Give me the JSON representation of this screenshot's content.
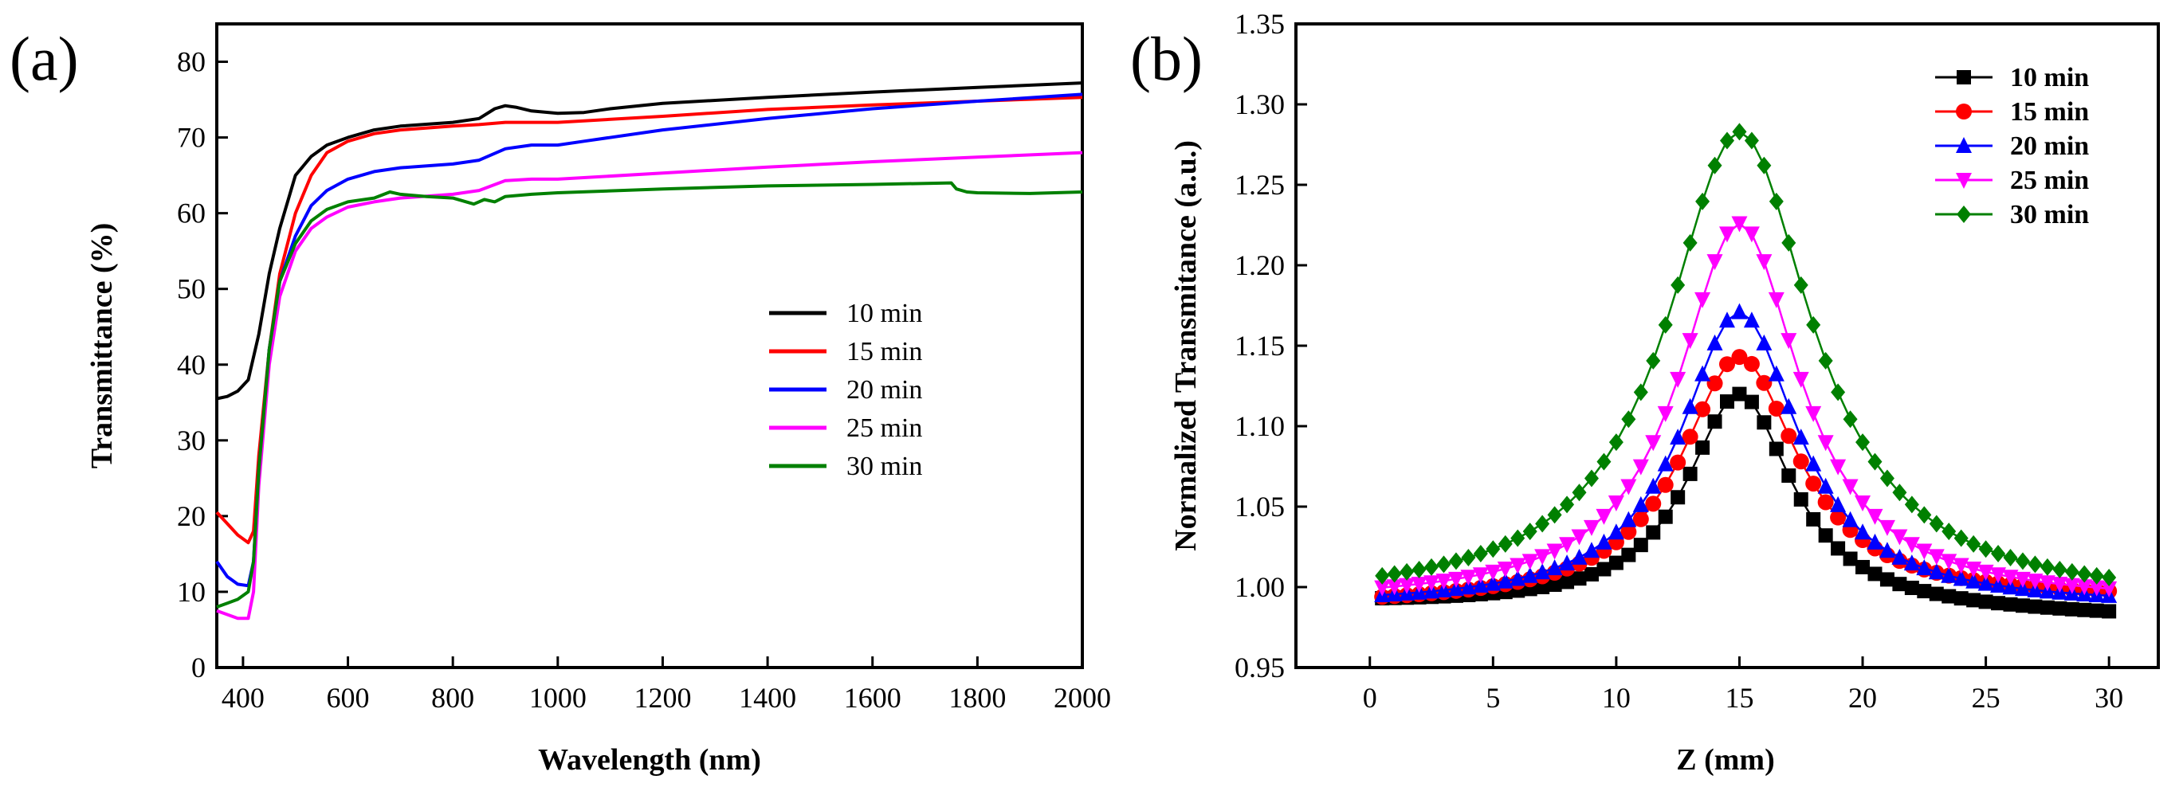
{
  "chart_data": [
    {
      "panel_label": "(a)",
      "type": "line",
      "xlabel": "Wavelength (nm)",
      "ylabel": "Transmittance (%)",
      "xlim": [
        350,
        2000
      ],
      "ylim": [
        0,
        85
      ],
      "xticks": [
        400,
        600,
        800,
        1000,
        1200,
        1400,
        1600,
        1800,
        2000
      ],
      "yticks": [
        0,
        10,
        20,
        30,
        40,
        50,
        60,
        70,
        80
      ],
      "legend_position": "center-right",
      "series": [
        {
          "name": "10 min",
          "color": "#000000",
          "x": [
            350,
            370,
            390,
            410,
            430,
            450,
            470,
            500,
            530,
            560,
            600,
            650,
            700,
            800,
            850,
            880,
            900,
            920,
            950,
            1000,
            1050,
            1100,
            1200,
            1400,
            1600,
            1800,
            2000
          ],
          "y": [
            35.5,
            35.8,
            36.5,
            38,
            44,
            52,
            58,
            65,
            67.5,
            69,
            70,
            71,
            71.5,
            72,
            72.5,
            73.8,
            74.2,
            74,
            73.5,
            73.2,
            73.3,
            73.8,
            74.5,
            75.3,
            76,
            76.6,
            77.2
          ]
        },
        {
          "name": "15 min",
          "color": "#ff0000",
          "x": [
            350,
            370,
            390,
            410,
            420,
            430,
            450,
            470,
            500,
            530,
            560,
            600,
            650,
            700,
            800,
            850,
            900,
            1000,
            1200,
            1400,
            1600,
            1800,
            2000
          ],
          "y": [
            20.5,
            19,
            17.5,
            16.5,
            18,
            28,
            42,
            52,
            60,
            65,
            68,
            69.5,
            70.5,
            71,
            71.5,
            71.7,
            72,
            72,
            72.8,
            73.7,
            74.3,
            74.8,
            75.3
          ]
        },
        {
          "name": "20 min",
          "color": "#0000ff",
          "x": [
            350,
            370,
            390,
            410,
            420,
            430,
            450,
            470,
            500,
            530,
            560,
            600,
            650,
            700,
            800,
            850,
            900,
            950,
            1000,
            1050,
            1200,
            1400,
            1600,
            1800,
            2000
          ],
          "y": [
            14,
            12,
            11,
            10.8,
            14,
            26,
            42,
            51,
            57,
            61,
            63,
            64.5,
            65.5,
            66,
            66.5,
            67,
            68.5,
            69,
            69,
            69.5,
            71,
            72.5,
            73.8,
            74.8,
            75.7
          ]
        },
        {
          "name": "25 min",
          "color": "#ff00ff",
          "x": [
            350,
            370,
            390,
            410,
            420,
            430,
            450,
            470,
            500,
            530,
            560,
            600,
            650,
            700,
            800,
            850,
            900,
            950,
            1000,
            1200,
            1400,
            1600,
            1800,
            2000
          ],
          "y": [
            7.5,
            7,
            6.5,
            6.5,
            10,
            24,
            40,
            49,
            55,
            58,
            59.5,
            60.8,
            61.5,
            62,
            62.5,
            63,
            64.3,
            64.5,
            64.5,
            65.3,
            66.1,
            66.8,
            67.4,
            68
          ]
        },
        {
          "name": "30 min",
          "color": "#008000",
          "x": [
            350,
            370,
            390,
            410,
            420,
            430,
            450,
            470,
            500,
            530,
            560,
            600,
            650,
            680,
            700,
            750,
            800,
            840,
            860,
            880,
            900,
            950,
            1000,
            1200,
            1400,
            1600,
            1750,
            1760,
            1780,
            1800,
            1900,
            2000
          ],
          "y": [
            8,
            8.5,
            9,
            10,
            14,
            26,
            42,
            51,
            56,
            59,
            60.5,
            61.5,
            62,
            62.8,
            62.5,
            62.2,
            62,
            61.2,
            61.8,
            61.5,
            62.2,
            62.5,
            62.7,
            63.2,
            63.6,
            63.8,
            64,
            63.2,
            62.8,
            62.7,
            62.6,
            62.8
          ]
        }
      ]
    },
    {
      "panel_label": "(b)",
      "type": "scatter-line",
      "xlabel": "Z (mm)",
      "ylabel": "Normalized Transmitance (a.u.)",
      "xlim": [
        -3,
        32
      ],
      "ylim": [
        0.95,
        1.35
      ],
      "xticks": [
        0,
        5,
        10,
        15,
        20,
        25,
        30
      ],
      "yticks": [
        "0.95",
        "1.00",
        "1.05",
        "1.10",
        "1.15",
        "1.20",
        "1.25",
        "1.30",
        "1.35"
      ],
      "legend_position": "top-right",
      "z": [
        0.5,
        1,
        1.5,
        2,
        2.5,
        3,
        3.5,
        4,
        4.5,
        5,
        5.5,
        6,
        6.5,
        7,
        7.5,
        8,
        8.5,
        9,
        9.5,
        10,
        10.5,
        11,
        11.5,
        12,
        12.5,
        13,
        13.5,
        14,
        14.5,
        15,
        15.5,
        16,
        16.5,
        17,
        17.5,
        18,
        18.5,
        19,
        19.5,
        20,
        20.5,
        21,
        21.5,
        22,
        22.5,
        23,
        23.5,
        24,
        24.5,
        25,
        25.5,
        26,
        26.5,
        27,
        27.5,
        28,
        28.5,
        29,
        29.5,
        30
      ],
      "series": [
        {
          "name": "10 min",
          "color": "#000000",
          "marker": "square",
          "peak": 1.12,
          "base": 0.985,
          "width": 2.6,
          "tail": -0.004
        },
        {
          "name": "15 min",
          "color": "#ff0000",
          "marker": "circle",
          "peak": 1.143,
          "base": 0.99,
          "width": 2.9,
          "tail": 0.002
        },
        {
          "name": "20 min",
          "color": "#0000ff",
          "marker": "triangle-up",
          "peak": 1.171,
          "base": 0.988,
          "width": 2.9,
          "tail": 0.0
        },
        {
          "name": "25 min",
          "color": "#ff00ff",
          "marker": "triangle-down",
          "peak": 1.226,
          "base": 0.99,
          "width": 3.0,
          "tail": 0.0
        },
        {
          "name": "30 min",
          "color": "#008000",
          "marker": "diamond",
          "peak": 1.283,
          "base": 0.99,
          "width": 3.6,
          "tail": 0.0
        }
      ]
    }
  ]
}
